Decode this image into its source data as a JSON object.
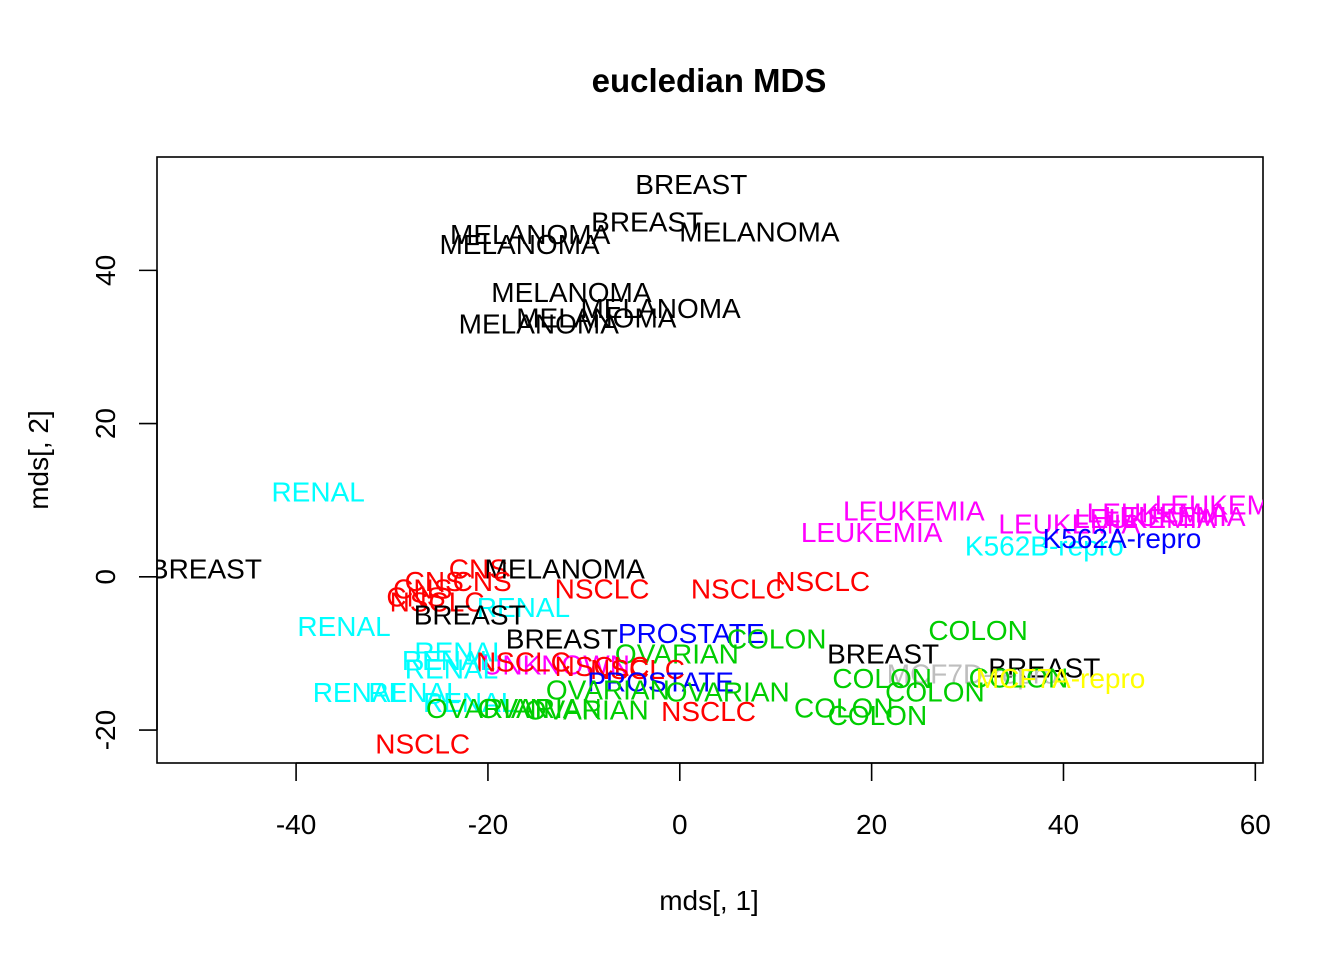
{
  "chart_data": {
    "type": "scatter",
    "title": "eucledian MDS",
    "xlabel": "mds[, 1]",
    "ylabel": "mds[, 2]",
    "xlim": [
      -54.5,
      60.8
    ],
    "ylim": [
      -24.3,
      54.8
    ],
    "x_ticks": [
      -40,
      -20,
      0,
      20,
      40,
      60
    ],
    "y_ticks": [
      -20,
      0,
      20,
      40
    ],
    "grid": false,
    "legend": "none",
    "colors": {
      "BREAST": "#000000",
      "MELANOMA": "#000000",
      "RENAL": "#00ffff",
      "CNS": "#ff0000",
      "NSCLC": "#ff0000",
      "LEUKEMIA": "#ff00ff",
      "K562A-repro": "#0000ff",
      "K562B-repro": "#00ffff",
      "PROSTATE": "#0000ff",
      "OVARIAN": "#00cd00",
      "COLON": "#00cd00",
      "UNKNOWN": "#ff00ff",
      "MCF7A-repro": "#ffff00",
      "MCF7D-repro": "#bebebe"
    },
    "points": [
      {
        "label": "BREAST",
        "x": 1.2,
        "y": 51.2
      },
      {
        "label": "BREAST",
        "x": -3.4,
        "y": 46.3
      },
      {
        "label": "MELANOMA",
        "x": 8.3,
        "y": 45.0
      },
      {
        "label": "MELANOMA",
        "x": -15.6,
        "y": 44.7
      },
      {
        "label": "MELANOMA",
        "x": -16.7,
        "y": 43.4
      },
      {
        "label": "MELANOMA",
        "x": -11.3,
        "y": 37.1
      },
      {
        "label": "MELANOMA",
        "x": -2.0,
        "y": 35.0
      },
      {
        "label": "MELANOMA",
        "x": -8.7,
        "y": 33.8
      },
      {
        "label": "MELANOMA",
        "x": -14.7,
        "y": 33.0
      },
      {
        "label": "RENAL",
        "x": -37.7,
        "y": 11.1
      },
      {
        "label": "BREAST",
        "x": -49.4,
        "y": 1.0
      },
      {
        "label": "CNS",
        "x": -21.0,
        "y": 1.0
      },
      {
        "label": "MELANOMA",
        "x": -12.0,
        "y": 1.0
      },
      {
        "label": "CNS",
        "x": -20.6,
        "y": -0.6
      },
      {
        "label": "CNS",
        "x": -25.6,
        "y": -0.6
      },
      {
        "label": "CNS",
        "x": -26.8,
        "y": -1.6
      },
      {
        "label": "CNS",
        "x": -27.5,
        "y": -2.6
      },
      {
        "label": "NSCLC",
        "x": -25.3,
        "y": -3.3
      },
      {
        "label": "NSCLC",
        "x": -8.1,
        "y": -1.6
      },
      {
        "label": "NSCLC",
        "x": 6.1,
        "y": -1.6
      },
      {
        "label": "NSCLC",
        "x": 14.9,
        "y": -0.6
      },
      {
        "label": "RENAL",
        "x": -16.3,
        "y": -4.0
      },
      {
        "label": "BREAST",
        "x": -21.9,
        "y": -5.0
      },
      {
        "label": "RENAL",
        "x": -35.0,
        "y": -6.5
      },
      {
        "label": "BREAST",
        "x": -12.3,
        "y": -8.1
      },
      {
        "label": "PROSTATE",
        "x": 1.2,
        "y": -7.4
      },
      {
        "label": "COLON",
        "x": 10.1,
        "y": -8.1
      },
      {
        "label": "COLON",
        "x": 31.1,
        "y": -7.0
      },
      {
        "label": "OVARIAN",
        "x": -0.3,
        "y": -10.1
      },
      {
        "label": "BREAST",
        "x": 21.2,
        "y": -10.1
      },
      {
        "label": "BREAST",
        "x": 38.0,
        "y": -11.9
      },
      {
        "label": "RENAL",
        "x": -22.8,
        "y": -9.8
      },
      {
        "label": "RENAL",
        "x": -24.1,
        "y": -10.9
      },
      {
        "label": "UNKNOWN",
        "x": -12.9,
        "y": -11.5
      },
      {
        "label": "NSCLC",
        "x": -16.3,
        "y": -11.1
      },
      {
        "label": "NSCLC",
        "x": -8.1,
        "y": -11.7
      },
      {
        "label": "NSCLC",
        "x": -4.4,
        "y": -12.1
      },
      {
        "label": "RENAL",
        "x": -23.8,
        "y": -12.0
      },
      {
        "label": "MCF7D-repro",
        "x": 30.5,
        "y": -12.7
      },
      {
        "label": "COLON",
        "x": 21.1,
        "y": -13.3
      },
      {
        "label": "COLON",
        "x": 35.3,
        "y": -13.2
      },
      {
        "label": "MCF7A-repro",
        "x": 39.7,
        "y": -13.3
      },
      {
        "label": "PROSTATE",
        "x": -2.0,
        "y": -13.7
      },
      {
        "label": "OVARIAN",
        "x": -7.5,
        "y": -14.8
      },
      {
        "label": "OVARIAN",
        "x": 5.0,
        "y": -15.0
      },
      {
        "label": "COLON",
        "x": 26.6,
        "y": -15.0
      },
      {
        "label": "RENAL",
        "x": -33.4,
        "y": -15.1
      },
      {
        "label": "RENAL",
        "x": -27.6,
        "y": -15.1
      },
      {
        "label": "RENAL",
        "x": -21.9,
        "y": -16.4
      },
      {
        "label": "OVARIAN",
        "x": -20.0,
        "y": -17.2
      },
      {
        "label": "OVARIAN",
        "x": -14.6,
        "y": -17.2
      },
      {
        "label": "OVARIAN",
        "x": -9.7,
        "y": -17.4
      },
      {
        "label": "NSCLC",
        "x": 3.0,
        "y": -17.6
      },
      {
        "label": "COLON",
        "x": 17.1,
        "y": -17.1
      },
      {
        "label": "COLON",
        "x": 20.6,
        "y": -18.1
      },
      {
        "label": "NSCLC",
        "x": -26.8,
        "y": -21.8
      },
      {
        "label": "LEUKEMIA",
        "x": 24.4,
        "y": 8.6
      },
      {
        "label": "LEUKEMIA",
        "x": 20.0,
        "y": 5.8
      },
      {
        "label": "LEUKEMIA",
        "x": 40.6,
        "y": 6.9
      },
      {
        "label": "LEUKEMIA",
        "x": 48.5,
        "y": 7.6
      },
      {
        "label": "LEUKEMIA",
        "x": 49.8,
        "y": 8.3
      },
      {
        "label": "LEUKEMIA",
        "x": 51.6,
        "y": 7.9
      },
      {
        "label": "LEUKEMIA",
        "x": 56.9,
        "y": 9.4
      },
      {
        "label": "K562B-repro",
        "x": 38.0,
        "y": 4.0
      },
      {
        "label": "K562A-repro",
        "x": 46.1,
        "y": 5.0
      }
    ]
  }
}
